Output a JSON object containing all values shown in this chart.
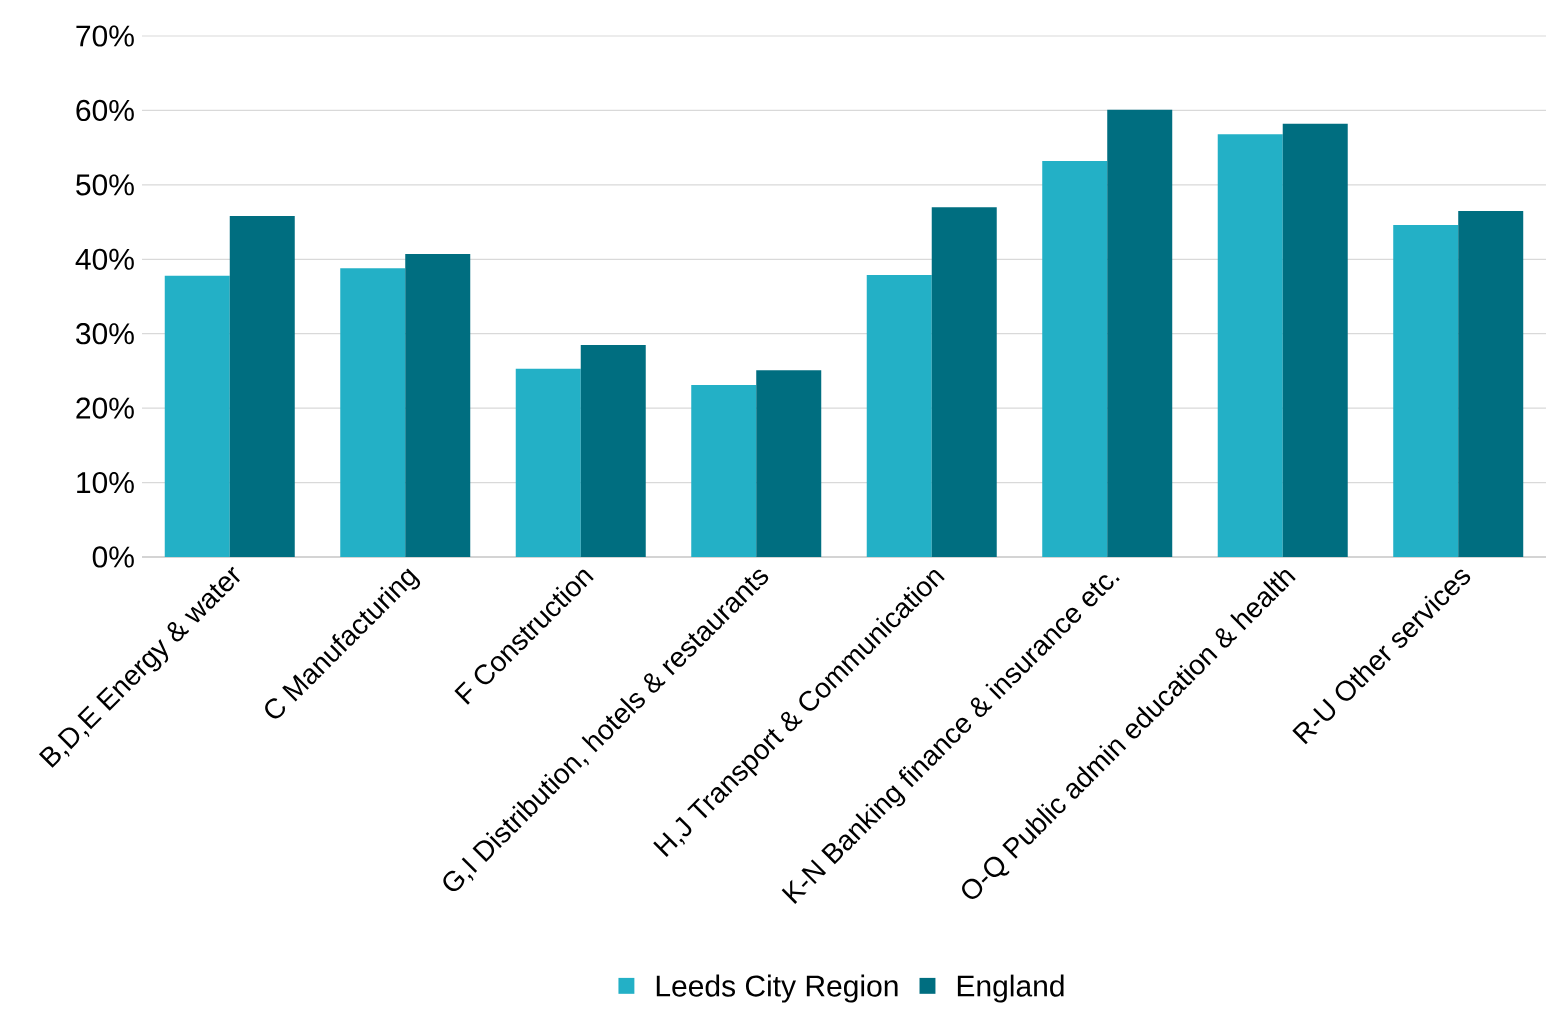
{
  "chart_data": {
    "type": "bar",
    "categories": [
      "B,D,E Energy & water",
      "C Manufacturing",
      "F Construction",
      "G,I Distribution, hotels & restaurants",
      "H,J Transport & Communication",
      "K-N Banking finance & insurance etc.",
      "O-Q Public admin education & health",
      "R-U Other services"
    ],
    "series": [
      {
        "name": "Leeds City Region",
        "color": "#23b0c6",
        "values": [
          37.8,
          38.8,
          25.3,
          23.1,
          37.9,
          53.2,
          56.8,
          44.6
        ]
      },
      {
        "name": "England",
        "color": "#006e80",
        "values": [
          45.8,
          40.7,
          28.5,
          25.1,
          47.0,
          60.1,
          58.2,
          46.5
        ]
      }
    ],
    "ylim": [
      0,
      70
    ],
    "yticks": [
      {
        "value": 0,
        "label": "0%"
      },
      {
        "value": 10,
        "label": "10%"
      },
      {
        "value": 20,
        "label": "20%"
      },
      {
        "value": 30,
        "label": "30%"
      },
      {
        "value": 40,
        "label": "40%"
      },
      {
        "value": 50,
        "label": "50%"
      },
      {
        "value": 60,
        "label": "60%"
      },
      {
        "value": 70,
        "label": "70%"
      }
    ],
    "grid": "y",
    "legend": "bottom"
  }
}
